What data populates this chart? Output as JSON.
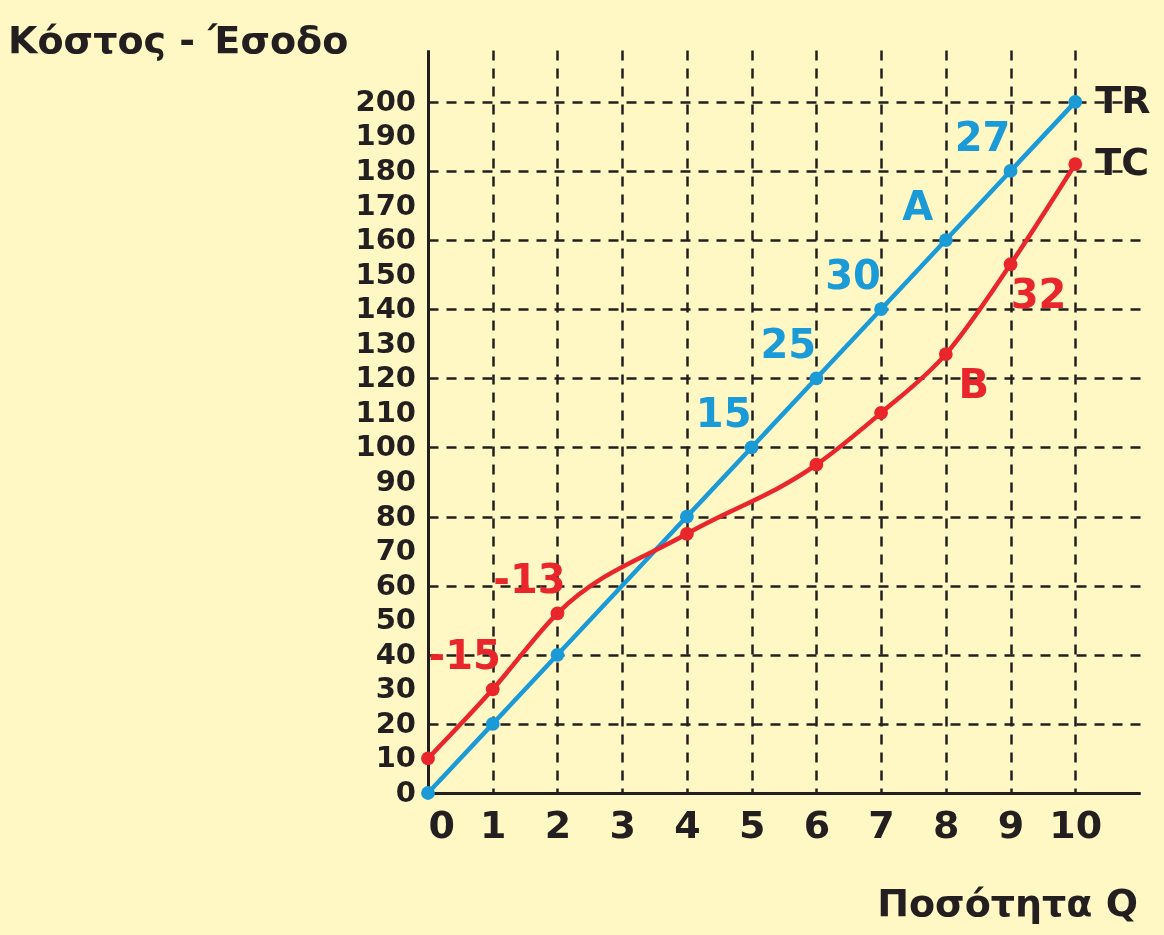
{
  "chart_data": {
    "type": "line",
    "xlabel": "Ποσότητα Q",
    "ylabel": "Κόστος - Έσοδο",
    "xlim": [
      0,
      11
    ],
    "ylim": [
      0,
      215
    ],
    "xticks": [
      0,
      1,
      2,
      3,
      4,
      5,
      6,
      7,
      8,
      9,
      10
    ],
    "yticks": [
      0,
      10,
      20,
      30,
      40,
      50,
      60,
      70,
      80,
      90,
      100,
      110,
      120,
      130,
      140,
      150,
      160,
      170,
      180,
      190,
      200
    ],
    "grid": true,
    "marker": "circle",
    "line_style": "solid",
    "series": [
      {
        "name": "TR",
        "color": "#1a9ad6",
        "x": [
          0,
          1,
          2,
          4,
          5,
          6,
          7,
          8,
          9,
          10
        ],
        "values": [
          0,
          20,
          40,
          80,
          100,
          120,
          140,
          160,
          180,
          200
        ]
      },
      {
        "name": "TC",
        "color": "#e8262b",
        "x": [
          0,
          1,
          2,
          4,
          6,
          7,
          8,
          9,
          10
        ],
        "values": [
          10,
          30,
          52,
          75,
          95,
          110,
          127,
          153,
          182
        ]
      }
    ],
    "annotations": [
      {
        "text": "-15",
        "x": 1,
        "y": 30
      },
      {
        "text": "-13",
        "x": 2,
        "y": 52
      },
      {
        "text": "15",
        "x": 5,
        "y": 100
      },
      {
        "text": "25",
        "x": 6,
        "y": 120
      },
      {
        "text": "30",
        "x": 7,
        "y": 140
      },
      {
        "text": "27",
        "x": 9,
        "y": 180
      },
      {
        "text": "32",
        "x": 9,
        "y": 153
      },
      {
        "text": "A",
        "x": 8,
        "y": 160
      },
      {
        "text": "B",
        "x": 8,
        "y": 127
      }
    ]
  }
}
